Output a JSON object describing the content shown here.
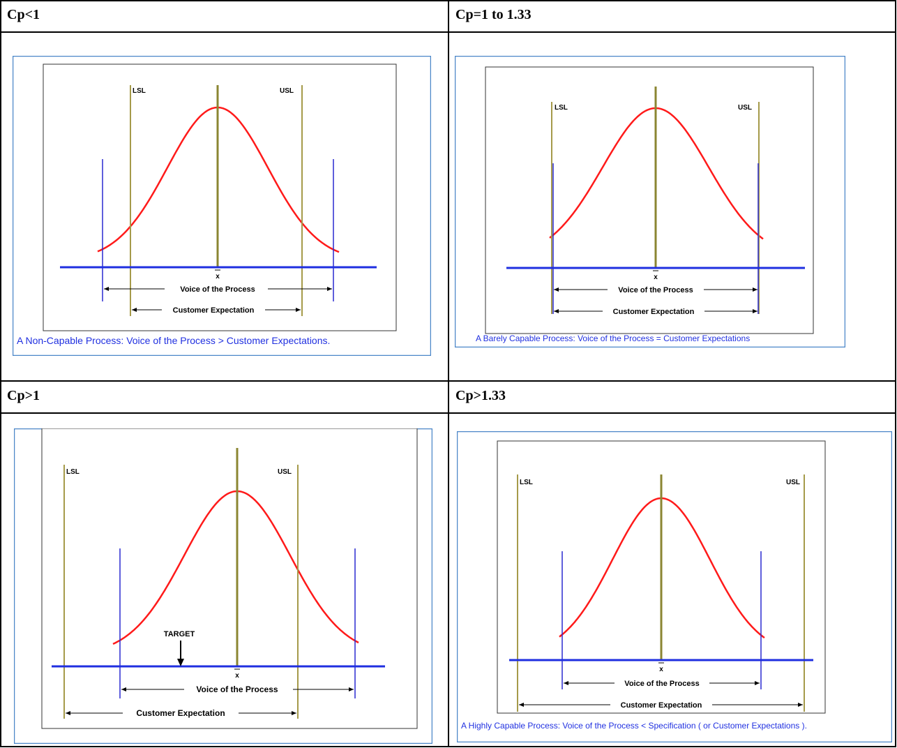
{
  "headers": [
    "Cp<1",
    "Cp=1 to 1.33",
    "Cp>1",
    "Cp>1.33"
  ],
  "labels": {
    "lsl": "LSL",
    "usl": "USL",
    "xbar": "x",
    "voice": "Voice of the Process",
    "customer": "Customer Expectation",
    "target": "TARGET"
  },
  "captions": {
    "p1": "A Non-Capable Process: Voice of the Process > Customer Expectations.",
    "p2": "A Barely Capable Process: Voice of the Process = Customer Expectations",
    "p4": "A Highly Capable Process: Voice of the Process < Specification ( or Customer Expectations )."
  },
  "colors": {
    "curve": "#ff1a1a",
    "spec": "#a59a4a",
    "blue_line": "#1f2fe0",
    "thin_blue": "#2a2ad0",
    "caption": "#2030e0",
    "frame": "#4a86c8"
  }
}
